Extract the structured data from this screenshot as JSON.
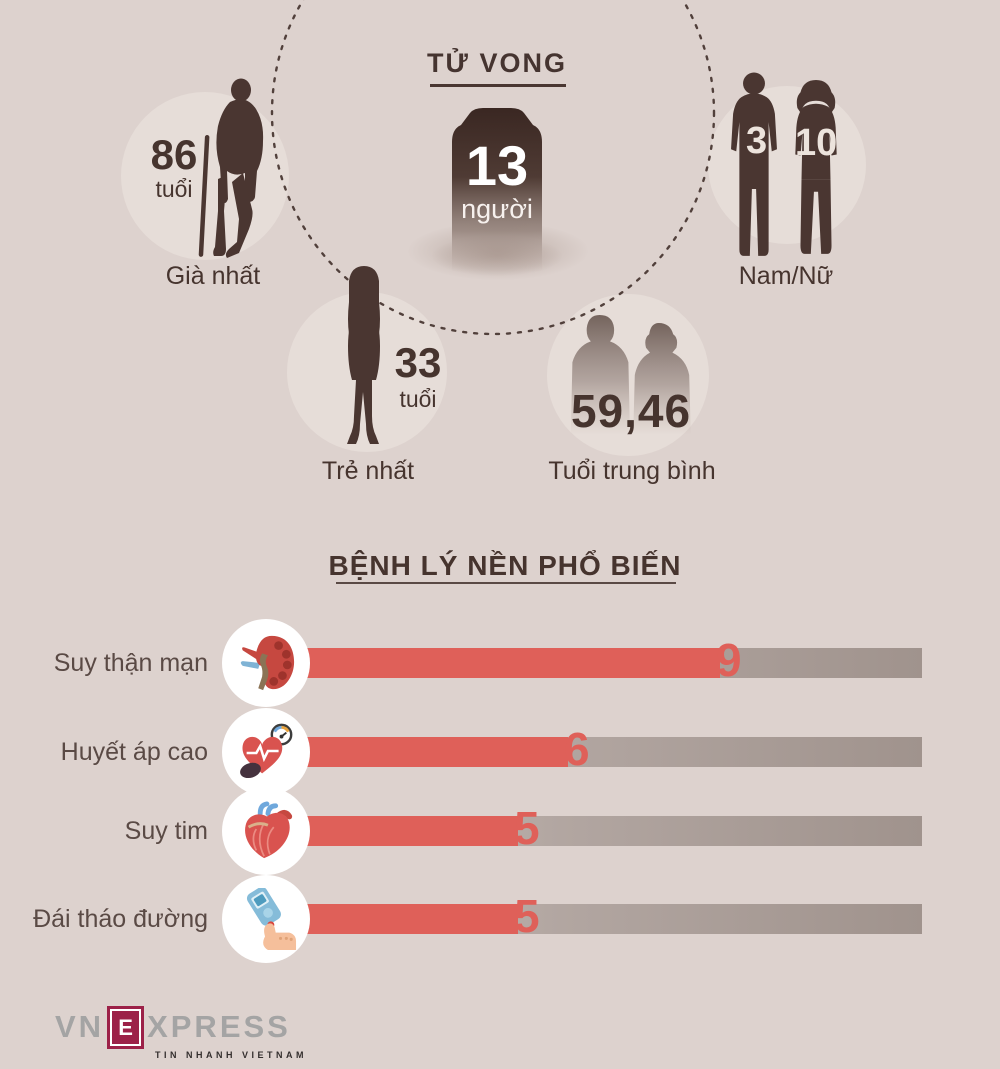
{
  "title": "TỬ VONG",
  "tombstone": {
    "count": "13",
    "unit": "người"
  },
  "stats": {
    "oldest": {
      "value": "86",
      "unit": "tuổi",
      "label": "Già nhất"
    },
    "gender": {
      "male": "3",
      "female": "10",
      "label": "Nam/Nữ"
    },
    "youngest": {
      "value": "33",
      "unit": "tuổi",
      "label": "Trẻ nhất"
    },
    "average": {
      "value": "59,46",
      "label": "Tuổi trung bình"
    }
  },
  "chart_data": {
    "type": "bar",
    "orientation": "horizontal",
    "title": "BỆNH LÝ NỀN PHỔ BIẾN",
    "categories": [
      "Suy thận mạn",
      "Huyết áp cao",
      "Suy tim",
      "Đái tháo đường"
    ],
    "values": [
      9,
      6,
      5,
      5
    ],
    "total": 13,
    "xlim": [
      0,
      13
    ],
    "grid": false,
    "bar_color": "#df6059",
    "track_color_left": "#c9bfbb",
    "track_color_right": "#a0938d",
    "icons": [
      "kidney-icon",
      "blood-pressure-icon",
      "heart-icon",
      "glucose-meter-icon"
    ]
  },
  "footer": {
    "logo_vn": "VN",
    "logo_e": "E",
    "logo_xpress": "XPRESS",
    "logo_tagline": "TIN NHANH VIETNAM"
  },
  "colors": {
    "background": "#ddd2ce",
    "circle_fill": "#e6ddd8",
    "silhouette": "#4a3631",
    "heading_text": "#46342e",
    "label_text": "#5a4a45",
    "accent_red": "#df6059",
    "logo_maroon": "#9c2148",
    "logo_gray": "#a4a4a4"
  }
}
